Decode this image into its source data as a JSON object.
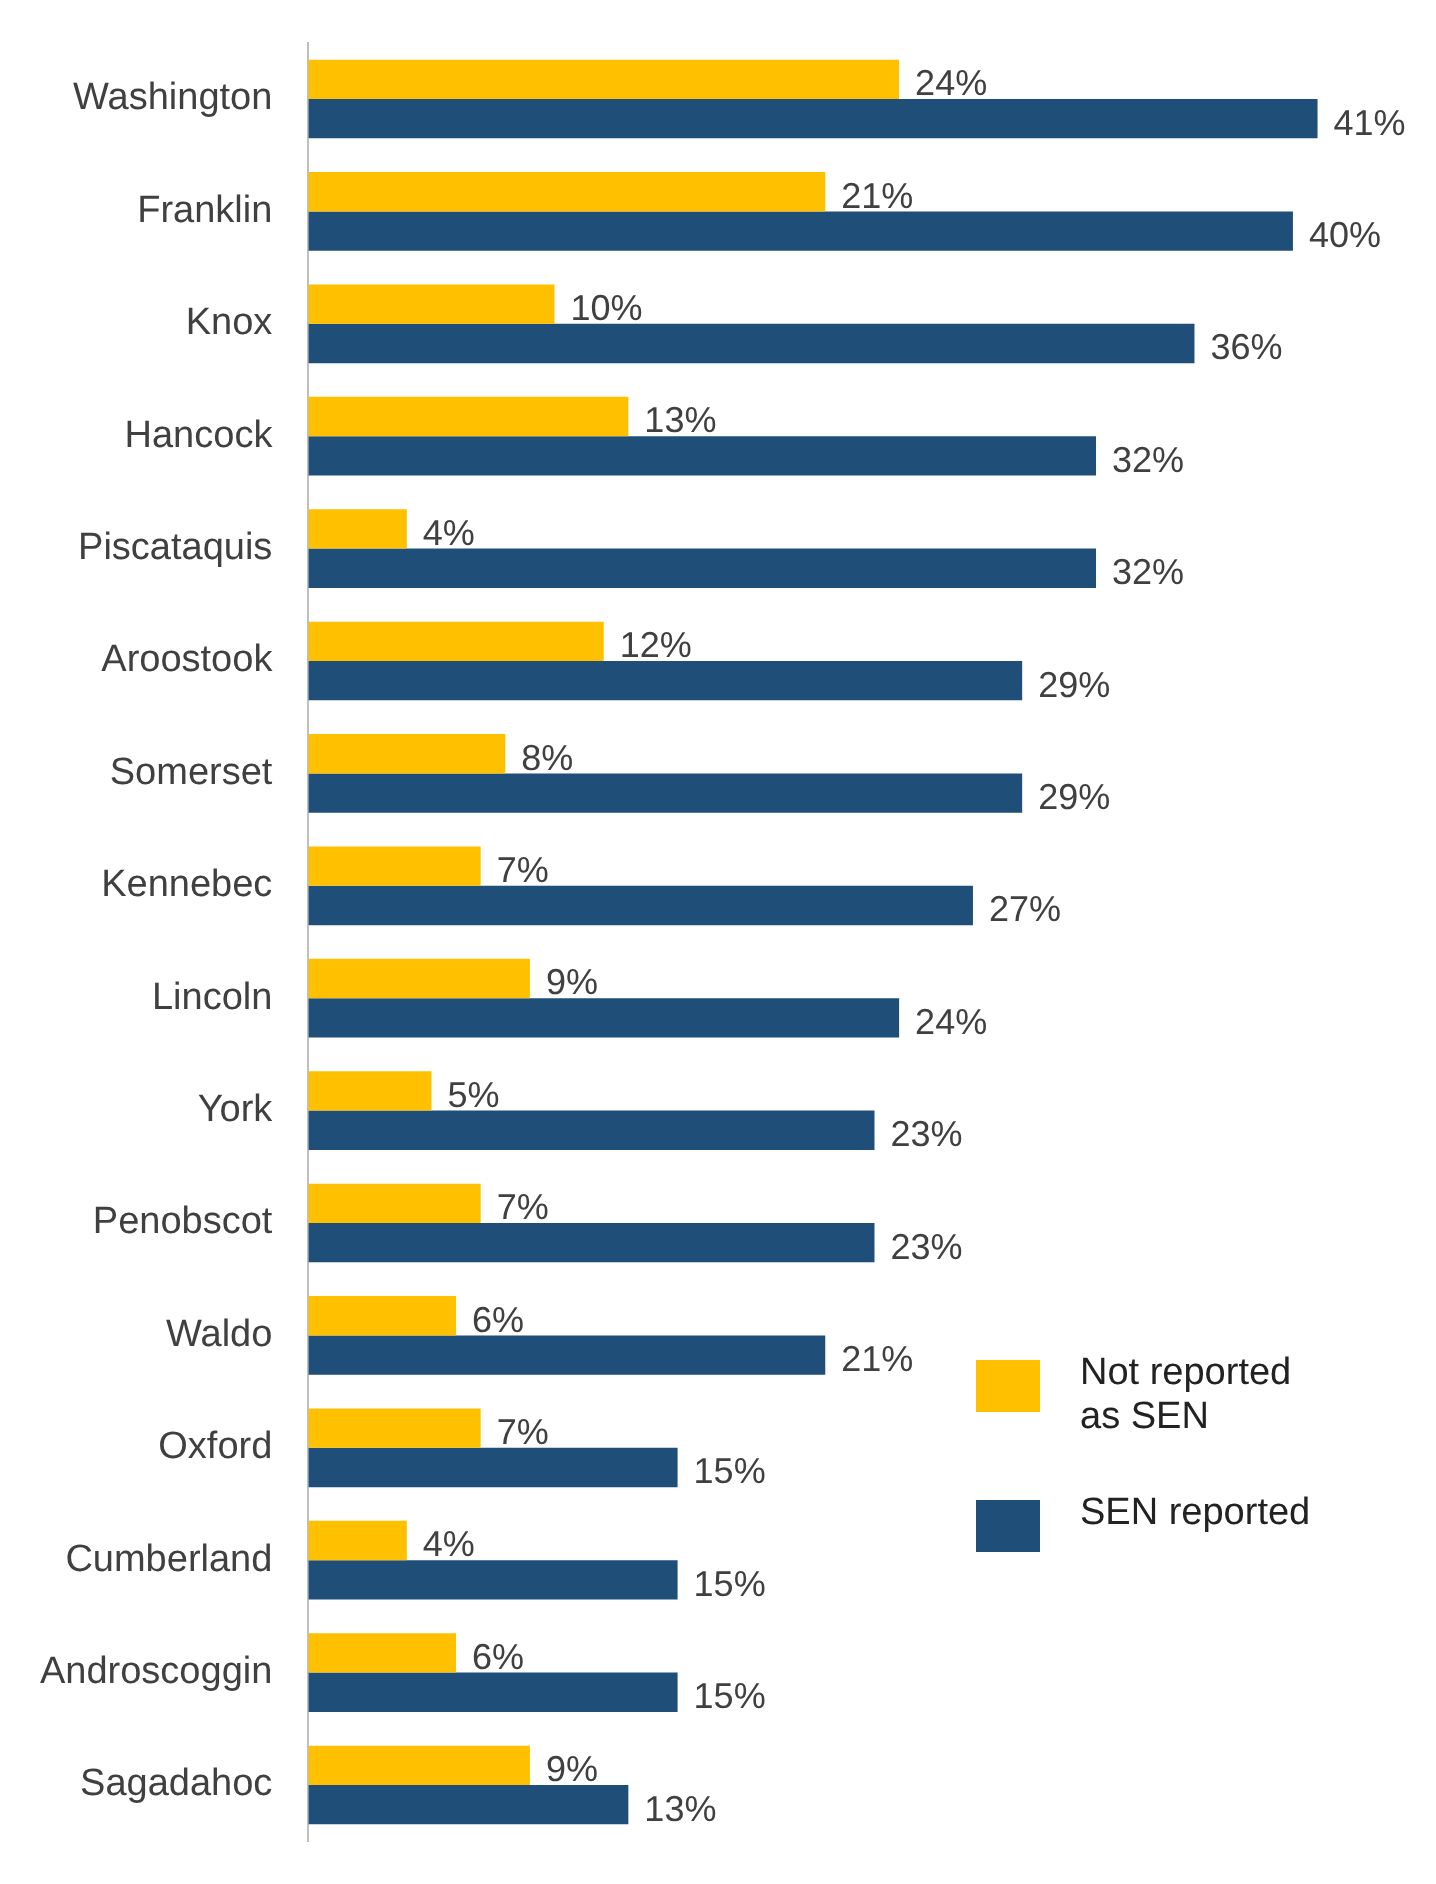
{
  "chart_data": {
    "type": "bar",
    "orientation": "horizontal",
    "categories": [
      "Washington",
      "Franklin",
      "Knox",
      "Hancock",
      "Piscataquis",
      "Aroostook",
      "Somerset",
      "Kennebec",
      "Lincoln",
      "York",
      "Penobscot",
      "Waldo",
      "Oxford",
      "Cumberland",
      "Androscoggin",
      "Sagadahoc"
    ],
    "series": [
      {
        "name": "Not reported as SEN",
        "color": "#ffc000",
        "values": [
          24,
          21,
          10,
          13,
          4,
          12,
          8,
          7,
          9,
          5,
          7,
          6,
          7,
          4,
          6,
          9
        ],
        "value_labels": [
          "24%",
          "21%",
          "10%",
          "13%",
          "4%",
          "12%",
          "8%",
          "7%",
          "9%",
          "5%",
          "7%",
          "6%",
          "7%",
          "4%",
          "6%",
          "9%"
        ]
      },
      {
        "name": "SEN reported",
        "color": "#1f4e79",
        "values": [
          41,
          40,
          36,
          32,
          32,
          29,
          29,
          27,
          24,
          23,
          23,
          21,
          15,
          15,
          15,
          13
        ],
        "value_labels": [
          "41%",
          "40%",
          "36%",
          "32%",
          "32%",
          "29%",
          "29%",
          "27%",
          "24%",
          "23%",
          "23%",
          "21%",
          "15%",
          "15%",
          "15%",
          "13%"
        ]
      }
    ],
    "legend": "right",
    "tick_labels": "y"
  }
}
